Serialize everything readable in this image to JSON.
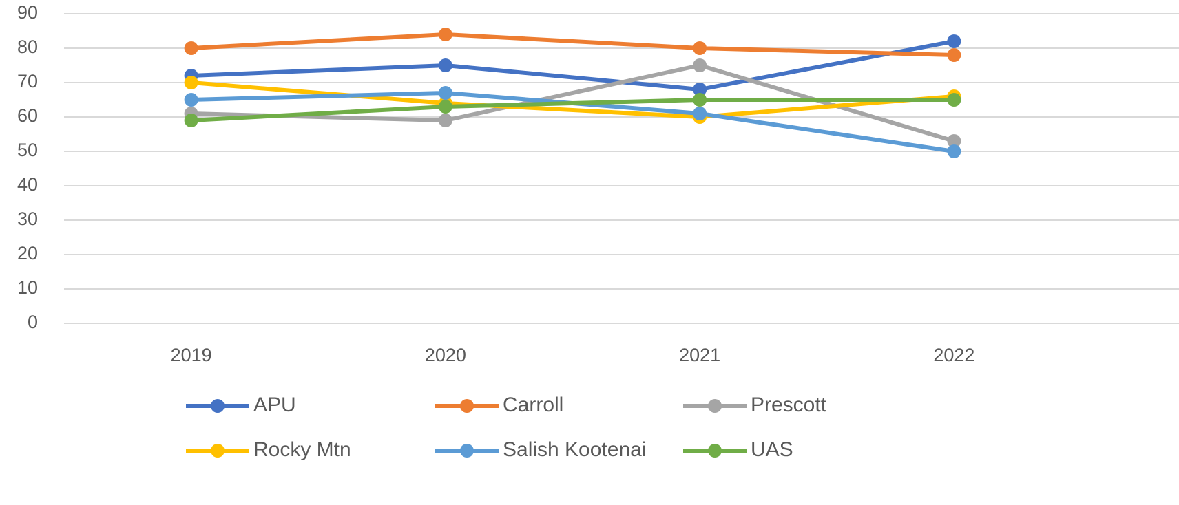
{
  "chart_data": {
    "type": "line",
    "categories": [
      "2019",
      "2020",
      "2021",
      "2022"
    ],
    "series": [
      {
        "name": "APU",
        "color": "#4472c4",
        "values": [
          72,
          75,
          68,
          82
        ]
      },
      {
        "name": "Carroll",
        "color": "#ed7d31",
        "values": [
          80,
          84,
          80,
          78
        ]
      },
      {
        "name": "Prescott",
        "color": "#a5a5a5",
        "values": [
          61,
          59,
          75,
          53
        ]
      },
      {
        "name": "Rocky Mtn",
        "color": "#ffc000",
        "values": [
          70,
          64,
          60,
          66
        ]
      },
      {
        "name": "Salish Kootenai",
        "color": "#5b9bd5",
        "values": [
          65,
          67,
          61,
          50
        ]
      },
      {
        "name": "UAS",
        "color": "#70ad47",
        "values": [
          59,
          63,
          65,
          65
        ]
      }
    ],
    "ylim": [
      0,
      90
    ],
    "yticks": [
      0,
      10,
      20,
      30,
      40,
      50,
      60,
      70,
      80,
      90
    ],
    "grid": true,
    "legend": "bottom"
  }
}
